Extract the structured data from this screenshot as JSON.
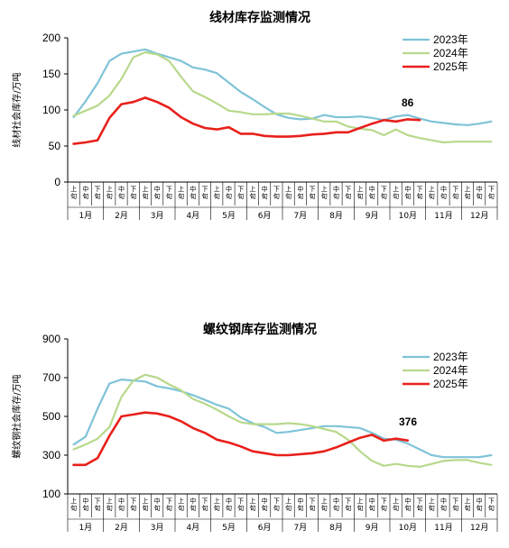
{
  "chart_data": [
    {
      "type": "line",
      "title": "线材库存监测情况",
      "ylabel": "线材社会库存/万吨",
      "ylim": [
        0,
        200
      ],
      "yticks": [
        0,
        50,
        100,
        150,
        200
      ],
      "x_ticks": [
        "上旬",
        "中旬",
        "下旬",
        "上旬",
        "中旬",
        "下旬",
        "上旬",
        "中旬",
        "下旬",
        "上旬",
        "中旬",
        "下旬",
        "上旬",
        "中旬",
        "下旬",
        "上旬",
        "中旬",
        "下旬",
        "上旬",
        "中旬",
        "下旬",
        "上旬",
        "中旬",
        "下旬",
        "上旬",
        "中旬",
        "下旬",
        "上旬",
        "中旬",
        "下旬",
        "上旬",
        "中旬",
        "下旬",
        "上旬",
        "中旬",
        "下旬"
      ],
      "months": [
        "1月",
        "2月",
        "3月",
        "4月",
        "5月",
        "6月",
        "7月",
        "8月",
        "9月",
        "10月",
        "11月",
        "12月"
      ],
      "legend_position": "top-right",
      "annotation": "86",
      "series": [
        {
          "name": "2023年",
          "color": "#7fc3d8",
          "values": [
            90,
            112,
            137,
            168,
            178,
            181,
            184,
            178,
            173,
            168,
            159,
            156,
            151,
            138,
            125,
            115,
            104,
            94,
            89,
            87,
            88,
            93,
            90,
            90,
            91,
            89,
            86,
            91,
            93,
            88,
            84,
            82,
            80,
            79,
            81,
            84
          ]
        },
        {
          "name": "2024年",
          "color": "#b8d88c",
          "values": [
            92,
            99,
            106,
            120,
            143,
            173,
            180,
            177,
            168,
            146,
            126,
            118,
            109,
            99,
            97,
            94,
            94,
            95,
            95,
            92,
            88,
            84,
            84,
            77,
            74,
            72,
            65,
            73,
            65,
            61,
            58,
            55,
            56,
            56,
            56,
            56
          ]
        },
        {
          "name": "2025年",
          "color": "#e8201b",
          "values": [
            53,
            55,
            58,
            89,
            108,
            111,
            117,
            111,
            103,
            90,
            81,
            75,
            73,
            76,
            67,
            67,
            64,
            63,
            63,
            64,
            66,
            67,
            69,
            69,
            75,
            81,
            86,
            84,
            87,
            86
          ]
        }
      ]
    },
    {
      "type": "line",
      "title": "螺纹钢库存监测情况",
      "ylabel": "螺纹钢社会库存/万吨",
      "ylim": [
        100,
        900
      ],
      "yticks": [
        100,
        300,
        500,
        700,
        900
      ],
      "x_ticks": [
        "上旬",
        "中旬",
        "下旬",
        "上旬",
        "中旬",
        "下旬",
        "上旬",
        "中旬",
        "下旬",
        "上旬",
        "中旬",
        "下旬",
        "上旬",
        "中旬",
        "下旬",
        "上旬",
        "中旬",
        "下旬",
        "上旬",
        "中旬",
        "下旬",
        "上旬",
        "中旬",
        "下旬",
        "上旬",
        "中旬",
        "下旬",
        "上旬",
        "中旬",
        "下旬",
        "上旬",
        "中旬",
        "下旬",
        "上旬",
        "中旬",
        "下旬"
      ],
      "months": [
        "1月",
        "2月",
        "3月",
        "4月",
        "5月",
        "6月",
        "7月",
        "8月",
        "9月",
        "10月",
        "11月",
        "12月"
      ],
      "legend_position": "top-right",
      "annotation": "376",
      "series": [
        {
          "name": "2023年",
          "color": "#7fc3d8",
          "values": [
            355,
            395,
            540,
            670,
            690,
            685,
            680,
            655,
            645,
            630,
            610,
            585,
            560,
            540,
            495,
            465,
            445,
            415,
            420,
            430,
            440,
            450,
            450,
            445,
            440,
            415,
            385,
            380,
            360,
            330,
            300,
            290,
            290,
            290,
            290,
            300
          ]
        },
        {
          "name": "2024年",
          "color": "#b8d88c",
          "values": [
            330,
            355,
            385,
            445,
            600,
            685,
            715,
            700,
            665,
            635,
            590,
            565,
            535,
            500,
            470,
            460,
            460,
            460,
            465,
            460,
            450,
            435,
            420,
            380,
            320,
            270,
            245,
            255,
            245,
            240,
            255,
            270,
            275,
            275,
            260,
            250
          ]
        },
        {
          "name": "2025年",
          "color": "#e8201b",
          "values": [
            250,
            250,
            285,
            400,
            500,
            510,
            520,
            515,
            500,
            475,
            440,
            415,
            380,
            365,
            345,
            320,
            310,
            300,
            300,
            305,
            310,
            320,
            340,
            365,
            390,
            405,
            375,
            385,
            376
          ]
        }
      ]
    }
  ]
}
